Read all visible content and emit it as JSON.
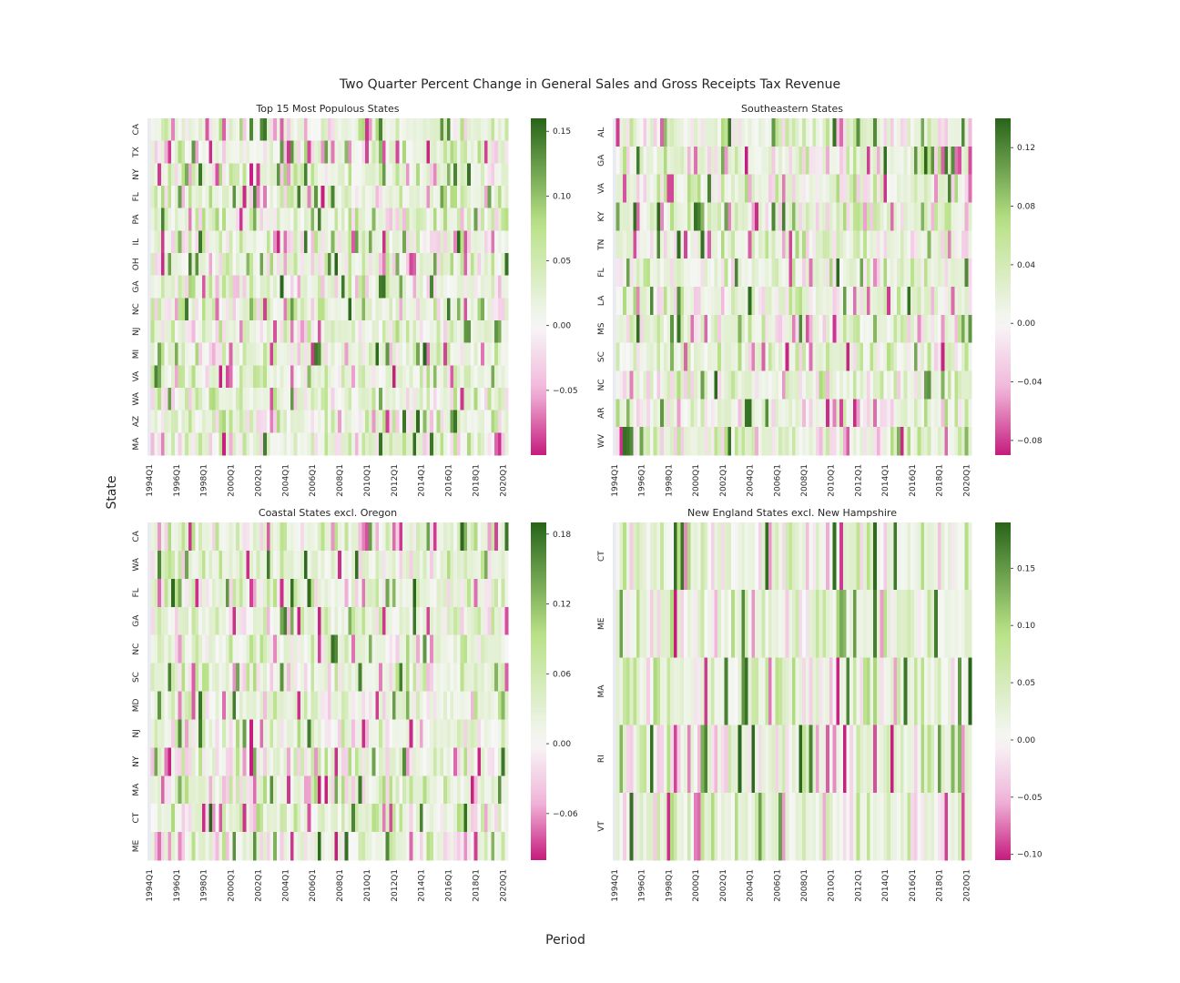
{
  "figure_title": "Two Quarter Percent Change in General Sales and Gross Receipts Tax Revenue",
  "supylabel": "State",
  "supxlabel": "Period",
  "colormap": {
    "name": "PiYG",
    "negative_color": "#c51b7d",
    "center_color": "#f7f7f7",
    "positive_color": "#276419"
  },
  "chart_data": [
    {
      "type": "heatmap",
      "title": "Top 15 Most Populous States",
      "rows": [
        "CA",
        "TX",
        "NY",
        "FL",
        "PA",
        "IL",
        "OH",
        "GA",
        "NC",
        "NJ",
        "MI",
        "VA",
        "WA",
        "AZ",
        "MA"
      ],
      "x_ticks": [
        "1994Q1",
        "1996Q1",
        "1998Q1",
        "2000Q1",
        "2002Q1",
        "2004Q1",
        "2006Q1",
        "2008Q1",
        "2010Q1",
        "2012Q1",
        "2014Q1",
        "2016Q1",
        "2018Q1",
        "2020Q1"
      ],
      "x_range": [
        "1994Q1",
        "2020Q2"
      ],
      "colorbar_ticks": [
        0.15,
        0.1,
        0.05,
        0.0,
        -0.05
      ],
      "colorbar_tick_labels": [
        "0.15",
        "0.10",
        "0.05",
        "0.00",
        "−0.05"
      ],
      "vmin": -0.1,
      "vmax": 0.16,
      "values_note": "approximate (dense quarterly grid)"
    },
    {
      "type": "heatmap",
      "title": "Southeastern States",
      "rows": [
        "AL",
        "GA",
        "VA",
        "KY",
        "TN",
        "FL",
        "LA",
        "MS",
        "SC",
        "NC",
        "AR",
        "WV"
      ],
      "x_ticks": [
        "1994Q1",
        "1996Q1",
        "1998Q1",
        "2000Q1",
        "2002Q1",
        "2004Q1",
        "2006Q1",
        "2008Q1",
        "2010Q1",
        "2012Q1",
        "2014Q1",
        "2016Q1",
        "2018Q1",
        "2020Q1"
      ],
      "x_range": [
        "1994Q1",
        "2020Q2"
      ],
      "colorbar_ticks": [
        0.12,
        0.08,
        0.04,
        0.0,
        -0.04,
        -0.08
      ],
      "colorbar_tick_labels": [
        "0.12",
        "0.08",
        "0.04",
        "0.00",
        "−0.04",
        "−0.08"
      ],
      "vmin": -0.09,
      "vmax": 0.14,
      "values_note": "approximate (dense quarterly grid)"
    },
    {
      "type": "heatmap",
      "title": "Coastal States excl. Oregon",
      "rows": [
        "CA",
        "WA",
        "FL",
        "GA",
        "NC",
        "SC",
        "MD",
        "NJ",
        "NY",
        "MA",
        "CT",
        "ME"
      ],
      "x_ticks": [
        "1994Q1",
        "1996Q1",
        "1998Q1",
        "2000Q1",
        "2002Q1",
        "2004Q1",
        "2006Q1",
        "2008Q1",
        "2010Q1",
        "2012Q1",
        "2014Q1",
        "2016Q1",
        "2018Q1",
        "2020Q1"
      ],
      "x_range": [
        "1994Q1",
        "2020Q2"
      ],
      "colorbar_ticks": [
        0.18,
        0.12,
        0.06,
        0.0,
        -0.06
      ],
      "colorbar_tick_labels": [
        "0.18",
        "0.12",
        "0.06",
        "0.00",
        "−0.06"
      ],
      "vmin": -0.1,
      "vmax": 0.19,
      "values_note": "approximate (dense quarterly grid)"
    },
    {
      "type": "heatmap",
      "title": "New England States excl. New Hampshire",
      "rows": [
        "CT",
        "ME",
        "MA",
        "RI",
        "VT"
      ],
      "x_ticks": [
        "1994Q1",
        "1996Q1",
        "1998Q1",
        "2000Q1",
        "2002Q1",
        "2004Q1",
        "2006Q1",
        "2008Q1",
        "2010Q1",
        "2012Q1",
        "2014Q1",
        "2016Q1",
        "2018Q1",
        "2020Q1"
      ],
      "x_range": [
        "1994Q1",
        "2020Q2"
      ],
      "colorbar_ticks": [
        0.15,
        0.1,
        0.05,
        0.0,
        -0.05,
        -0.1
      ],
      "colorbar_tick_labels": [
        "0.15",
        "0.10",
        "0.05",
        "0.00",
        "−0.05",
        "−0.10"
      ],
      "vmin": -0.105,
      "vmax": 0.19,
      "values_note": "approximate (dense quarterly grid)"
    }
  ]
}
